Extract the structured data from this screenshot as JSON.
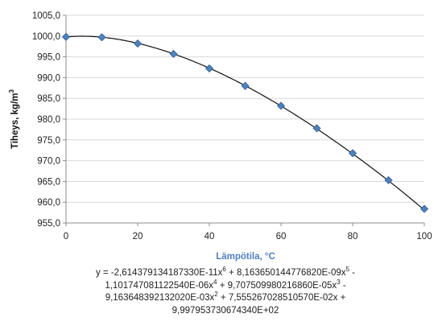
{
  "colors": {
    "marker": "#4f81bd",
    "marker_stroke": "#2f5f95",
    "trendline": "#111111",
    "grid": "#d9d9d9",
    "axis": "#8c8c8c",
    "xlabel": "#4f81bd"
  },
  "chart_data": {
    "type": "scatter",
    "xlabel": "Lämpötila, °C",
    "ylabel": "Tiheys, kg/m",
    "ylabel_superscript": "3",
    "xlim": [
      0,
      100
    ],
    "ylim": [
      955,
      1005
    ],
    "x_ticks": [
      0,
      20,
      40,
      60,
      80,
      100
    ],
    "y_ticks": [
      955,
      960,
      965,
      970,
      975,
      980,
      985,
      990,
      995,
      1000,
      1005
    ],
    "y_tick_labels": [
      "955,0",
      "960,0",
      "965,0",
      "970,0",
      "975,0",
      "980,0",
      "985,0",
      "990,0",
      "995,0",
      "1000,0",
      "1005,0"
    ],
    "grid": "horizontal",
    "legend": "none",
    "series": [
      {
        "x": [
          0,
          10,
          20,
          30,
          40,
          50,
          60,
          70,
          80,
          90,
          100
        ],
        "y": [
          999.8,
          999.7,
          998.2,
          995.7,
          992.2,
          988.0,
          983.2,
          977.8,
          971.8,
          965.3,
          958.4
        ],
        "marker": "diamond"
      }
    ],
    "trendline": {
      "type": "polynomial",
      "order": 6,
      "coefficients": [
        -2.61437913418733e-11,
        8.16365014477682e-09,
        -1.10174708112254e-06,
        9.70750998021686e-05,
        -0.00916364839213202,
        0.0755526702851057,
        999.795373067434
      ],
      "equation_lines": [
        [
          "y = -2,614379134187330E-11x",
          "6",
          " + 8,163650144776820E-09x",
          "5",
          " -"
        ],
        [
          "1,101747081122540E-06x",
          "4",
          " + 9,707509980216860E-05x",
          "3",
          " -"
        ],
        [
          "9,163648392132020E-03x",
          "2",
          " + 7,555267028510570E-02x +"
        ],
        [
          "9,997953730674340E+02"
        ]
      ]
    }
  }
}
